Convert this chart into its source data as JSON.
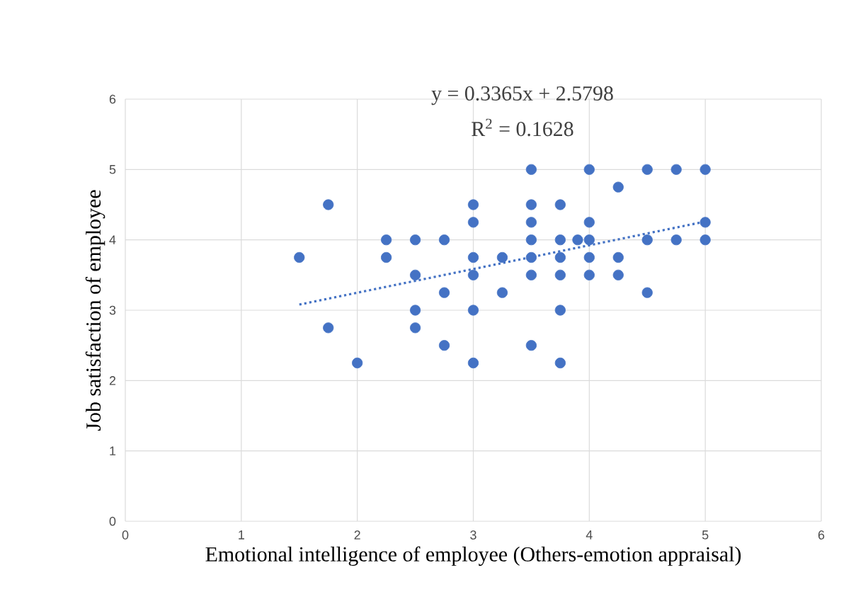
{
  "chart_data": {
    "type": "scatter",
    "xlabel": "Emotional intelligence of employee (Others-emotion appraisal)",
    "ylabel": "Job satisfaction of employee",
    "annotations": [
      "y = 0.3365x + 2.5798",
      "R$^{2}$ = 0.1628"
    ],
    "xlim": [
      0,
      6
    ],
    "ylim": [
      0,
      6
    ],
    "xticks": [
      0,
      1,
      2,
      3,
      4,
      5,
      6
    ],
    "yticks": [
      0,
      1,
      2,
      3,
      4,
      5,
      6
    ],
    "grid": true,
    "series": [
      {
        "color": "#4472c4",
        "marker": "circle",
        "x": [
          1.5,
          1.75,
          1.75,
          2,
          2.25,
          2.25,
          2.5,
          2.5,
          2.5,
          2.5,
          2.75,
          2.75,
          2.75,
          3,
          3,
          3,
          3,
          3,
          3,
          3.25,
          3.25,
          3.5,
          3.5,
          3.5,
          3.5,
          3.5,
          3.5,
          3.5,
          3.75,
          3.75,
          3.75,
          3.75,
          3.75,
          3.75,
          3.9,
          4,
          4,
          4,
          4,
          4,
          4.25,
          4.25,
          4.25,
          4.5,
          4.5,
          4.5,
          4.75,
          4.75,
          5,
          5,
          5
        ],
        "values": [
          3.75,
          4.5,
          2.75,
          2.25,
          4,
          3.75,
          4,
          3.5,
          3,
          2.75,
          4,
          3.25,
          2.5,
          4.5,
          4.25,
          3.75,
          3.5,
          3,
          2.25,
          3.75,
          3.25,
          5,
          4.5,
          4.25,
          4,
          3.75,
          3.5,
          2.5,
          4.5,
          4,
          3.75,
          3.5,
          3,
          2.25,
          4,
          5,
          4.25,
          4,
          3.75,
          3.5,
          4.75,
          3.75,
          3.5,
          5,
          4,
          3.25,
          5,
          4,
          5,
          4.25,
          4
        ]
      },
      {
        "type": "line",
        "color": "#4472c4",
        "marker": "none",
        "line_style": "dotted",
        "x": [
          1.5,
          5
        ],
        "values": [
          3.08,
          4.26
        ]
      }
    ]
  }
}
